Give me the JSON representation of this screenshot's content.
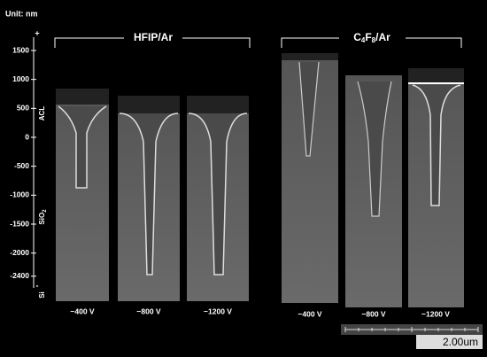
{
  "unit": "Unit: nm",
  "axis": {
    "ticks": [
      1500,
      1000,
      500,
      0,
      -500,
      -1000,
      -1500,
      -2000,
      -2400
    ],
    "plus": "+",
    "minus": "-"
  },
  "layers": {
    "acl": "ACL",
    "sio2": {
      "base": "SiO",
      "sub": "2"
    },
    "si": "Si"
  },
  "groups": [
    {
      "title": {
        "parts": [
          "HFIP/Ar"
        ]
      },
      "voltages": [
        "−400 V",
        "−800 V",
        "−1200 V"
      ]
    },
    {
      "title": {
        "parts": [
          "C",
          "4",
          "F",
          "8",
          "/Ar"
        ]
      },
      "voltages": [
        "−400 V",
        "−800 V",
        "−1200 V"
      ]
    }
  ],
  "scale_bar": "2.00um"
}
